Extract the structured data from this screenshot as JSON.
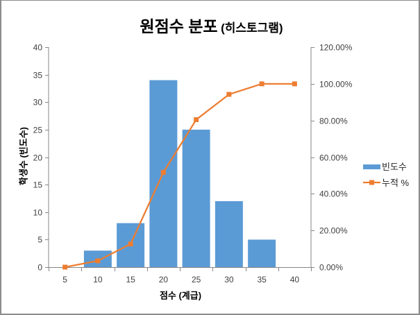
{
  "chart": {
    "title_main": "원점수 분포",
    "title_sub": "(히스토그램)",
    "xlabel": "점수 (계급)",
    "ylabel": "학생수 (빈도수)"
  },
  "chart_data": {
    "type": "bar",
    "title": "원점수 분포 (히스토그램)",
    "xlabel": "점수 (계급)",
    "ylabel": "학생수 (빈도수)",
    "y2label": "",
    "categories": [
      "5",
      "10",
      "15",
      "20",
      "25",
      "30",
      "35",
      "40"
    ],
    "series": [
      {
        "name": "빈도수",
        "type": "bar",
        "axis": "left",
        "color": "#5B9BD5",
        "values": [
          0,
          3,
          8,
          34,
          25,
          12,
          5,
          0
        ]
      },
      {
        "name": "누적 %",
        "type": "line",
        "axis": "right",
        "color": "#ED7D31",
        "marker": "square",
        "values": [
          0,
          3.45,
          12.64,
          51.72,
          80.46,
          94.25,
          100,
          100
        ]
      }
    ],
    "ylim": [
      0,
      40
    ],
    "yticks": [
      0,
      5,
      10,
      15,
      20,
      25,
      30,
      35,
      40
    ],
    "ytick_labels": [
      "0",
      "5",
      "10",
      "15",
      "20",
      "25",
      "30",
      "35",
      "40"
    ],
    "y2lim": [
      0,
      120
    ],
    "y2ticks": [
      0,
      20,
      40,
      60,
      80,
      100,
      120
    ],
    "y2tick_labels": [
      "0.00%",
      "20.00%",
      "40.00%",
      "60.00%",
      "80.00%",
      "100.00%",
      "120.00%"
    ],
    "grid": false,
    "legend_position": "right",
    "axis_color": "#868686"
  }
}
